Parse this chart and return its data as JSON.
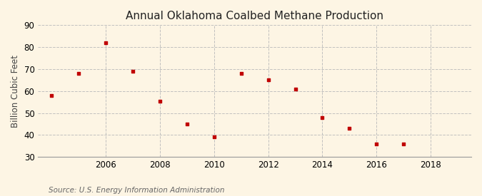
{
  "title": "Annual Oklahoma Coalbed Methane Production",
  "ylabel": "Billion Cubic Feet",
  "source": "Source: U.S. Energy Information Administration",
  "years": [
    2004,
    2005,
    2006,
    2007,
    2008,
    2009,
    2010,
    2011,
    2012,
    2013,
    2014,
    2015,
    2016,
    2017
  ],
  "values": [
    58.0,
    68.0,
    82.0,
    69.0,
    55.5,
    45.0,
    39.0,
    68.0,
    65.0,
    61.0,
    48.0,
    43.0,
    36.0,
    36.0
  ],
  "marker_color": "#c00000",
  "background_color": "#fdf5e4",
  "grid_color": "#bbbbbb",
  "xlim": [
    2003.5,
    2019.5
  ],
  "ylim": [
    30,
    90
  ],
  "yticks": [
    30,
    40,
    50,
    60,
    70,
    80,
    90
  ],
  "xticks": [
    2006,
    2008,
    2010,
    2012,
    2014,
    2016,
    2018
  ],
  "title_fontsize": 11,
  "label_fontsize": 8.5,
  "tick_fontsize": 8.5,
  "source_fontsize": 7.5
}
